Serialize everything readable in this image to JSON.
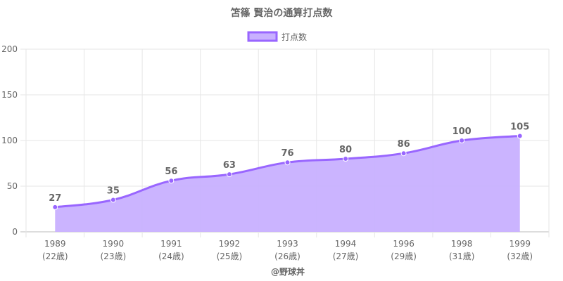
{
  "chart_data": {
    "type": "area",
    "title": "笘篠 賢治の通算打点数",
    "legend": {
      "position": "top",
      "entries": [
        "打点数"
      ]
    },
    "series": [
      {
        "name": "打点数",
        "values": [
          27,
          35,
          56,
          63,
          76,
          80,
          86,
          100,
          105
        ],
        "color": "#9966ff",
        "fill": "#c8b0ff"
      }
    ],
    "categories": [
      "1989",
      "1990",
      "1991",
      "1992",
      "1993",
      "1994",
      "1996",
      "1998",
      "1999"
    ],
    "category_sublabels": [
      "(22歳)",
      "(23歳)",
      "(24歳)",
      "(25歳)",
      "(26歳)",
      "(27歳)",
      "(29歳)",
      "(31歳)",
      "(32歳)"
    ],
    "ylim": [
      0,
      200
    ],
    "yticks": [
      0,
      50,
      100,
      150,
      200
    ],
    "grid": true,
    "data_labels": true
  },
  "credit": "@野球丼"
}
